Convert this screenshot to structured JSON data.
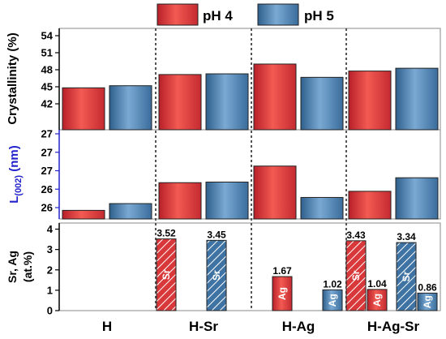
{
  "legend": [
    "pH 4",
    "pH 5"
  ],
  "colors": {
    "ph4": "#e8453f",
    "ph5": "#4f86b6",
    "l002_axis": "#2222cc"
  },
  "chart_data": [
    {
      "type": "bar",
      "ylabel": "Crystallinity (%)",
      "categories": [
        "H",
        "H-Sr",
        "H-Ag",
        "H-Ag-Sr"
      ],
      "ylim": [
        40.5,
        55
      ],
      "yticks": [
        "42",
        "45",
        "48",
        "51",
        "54"
      ],
      "series": [
        {
          "name": "pH 4",
          "values": [
            46.5,
            48.4,
            49.9,
            48.9
          ]
        },
        {
          "name": "pH 5",
          "values": [
            46.8,
            48.5,
            48.0,
            49.3
          ]
        }
      ]
    },
    {
      "type": "bar",
      "ylabel_main": "L",
      "ylabel_sub": "(002)",
      "ylabel_unit": " (nm)",
      "categories": [
        "H",
        "H-Sr",
        "H-Ag",
        "H-Ag-Sr"
      ],
      "ylim": [
        25.8,
        27.25
      ],
      "yticks": [
        "26",
        "26",
        "27",
        "27",
        "27"
      ],
      "series": [
        {
          "name": "pH 4",
          "values": [
            25.94,
            26.39,
            26.66,
            26.25
          ]
        },
        {
          "name": "pH 5",
          "values": [
            26.05,
            26.4,
            26.15,
            26.47
          ]
        }
      ]
    },
    {
      "type": "bar",
      "ylabel_line1": "Sr, Ag",
      "ylabel_line2": "(at.%)",
      "categories": [
        "H",
        "H-Sr",
        "H-Ag",
        "H-Ag-Sr"
      ],
      "ylim": [
        0,
        4.3
      ],
      "yticks": [
        "0",
        "1",
        "2",
        "3",
        "4"
      ],
      "bars": [
        {
          "group": "H-Sr",
          "ph": "pH 4",
          "element": "Sr",
          "value": 3.52,
          "label": "3.52"
        },
        {
          "group": "H-Sr",
          "ph": "pH 5",
          "element": "Sr",
          "value": 3.45,
          "label": "3.45"
        },
        {
          "group": "H-Ag",
          "ph": "pH 4",
          "element": "Ag",
          "value": 1.67,
          "label": "1.67"
        },
        {
          "group": "H-Ag",
          "ph": "pH 5",
          "element": "Ag",
          "value": 1.02,
          "label": "1.02"
        },
        {
          "group": "H-Ag-Sr",
          "ph": "pH 4",
          "element": "Sr",
          "value": 3.43,
          "label": "3.43"
        },
        {
          "group": "H-Ag-Sr",
          "ph": "pH 4",
          "element": "Ag",
          "value": 1.04,
          "label": "1.04"
        },
        {
          "group": "H-Ag-Sr",
          "ph": "pH 5",
          "element": "Sr",
          "value": 3.34,
          "label": "3.34"
        },
        {
          "group": "H-Ag-Sr",
          "ph": "pH 5",
          "element": "Ag",
          "value": 0.86,
          "label": "0.86"
        }
      ]
    }
  ]
}
